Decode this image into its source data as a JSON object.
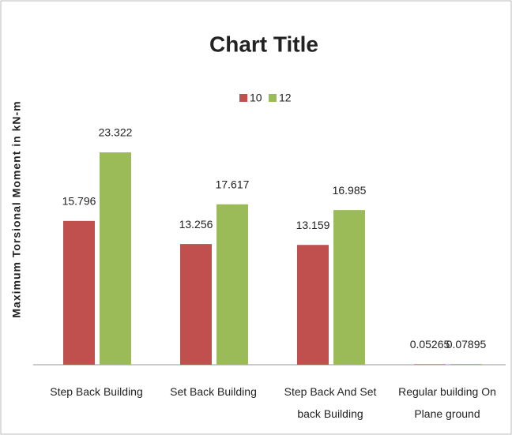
{
  "chart_data": {
    "type": "bar",
    "title": "Chart Title",
    "y_label": "Maximum Torsional Moment in kN-m",
    "categories": [
      "Step Back Building",
      "Set Back Building",
      "Step Back And Set back Building",
      "Regular building On Plane ground"
    ],
    "series": [
      {
        "name": "10",
        "color": "#c0504d",
        "values": [
          15.796,
          13.256,
          13.159,
          0.05265
        ]
      },
      {
        "name": "12",
        "color": "#9bbb59",
        "values": [
          23.322,
          17.617,
          16.985,
          0.07895
        ]
      }
    ],
    "ylim": [
      0,
      30
    ],
    "legend": "top"
  }
}
